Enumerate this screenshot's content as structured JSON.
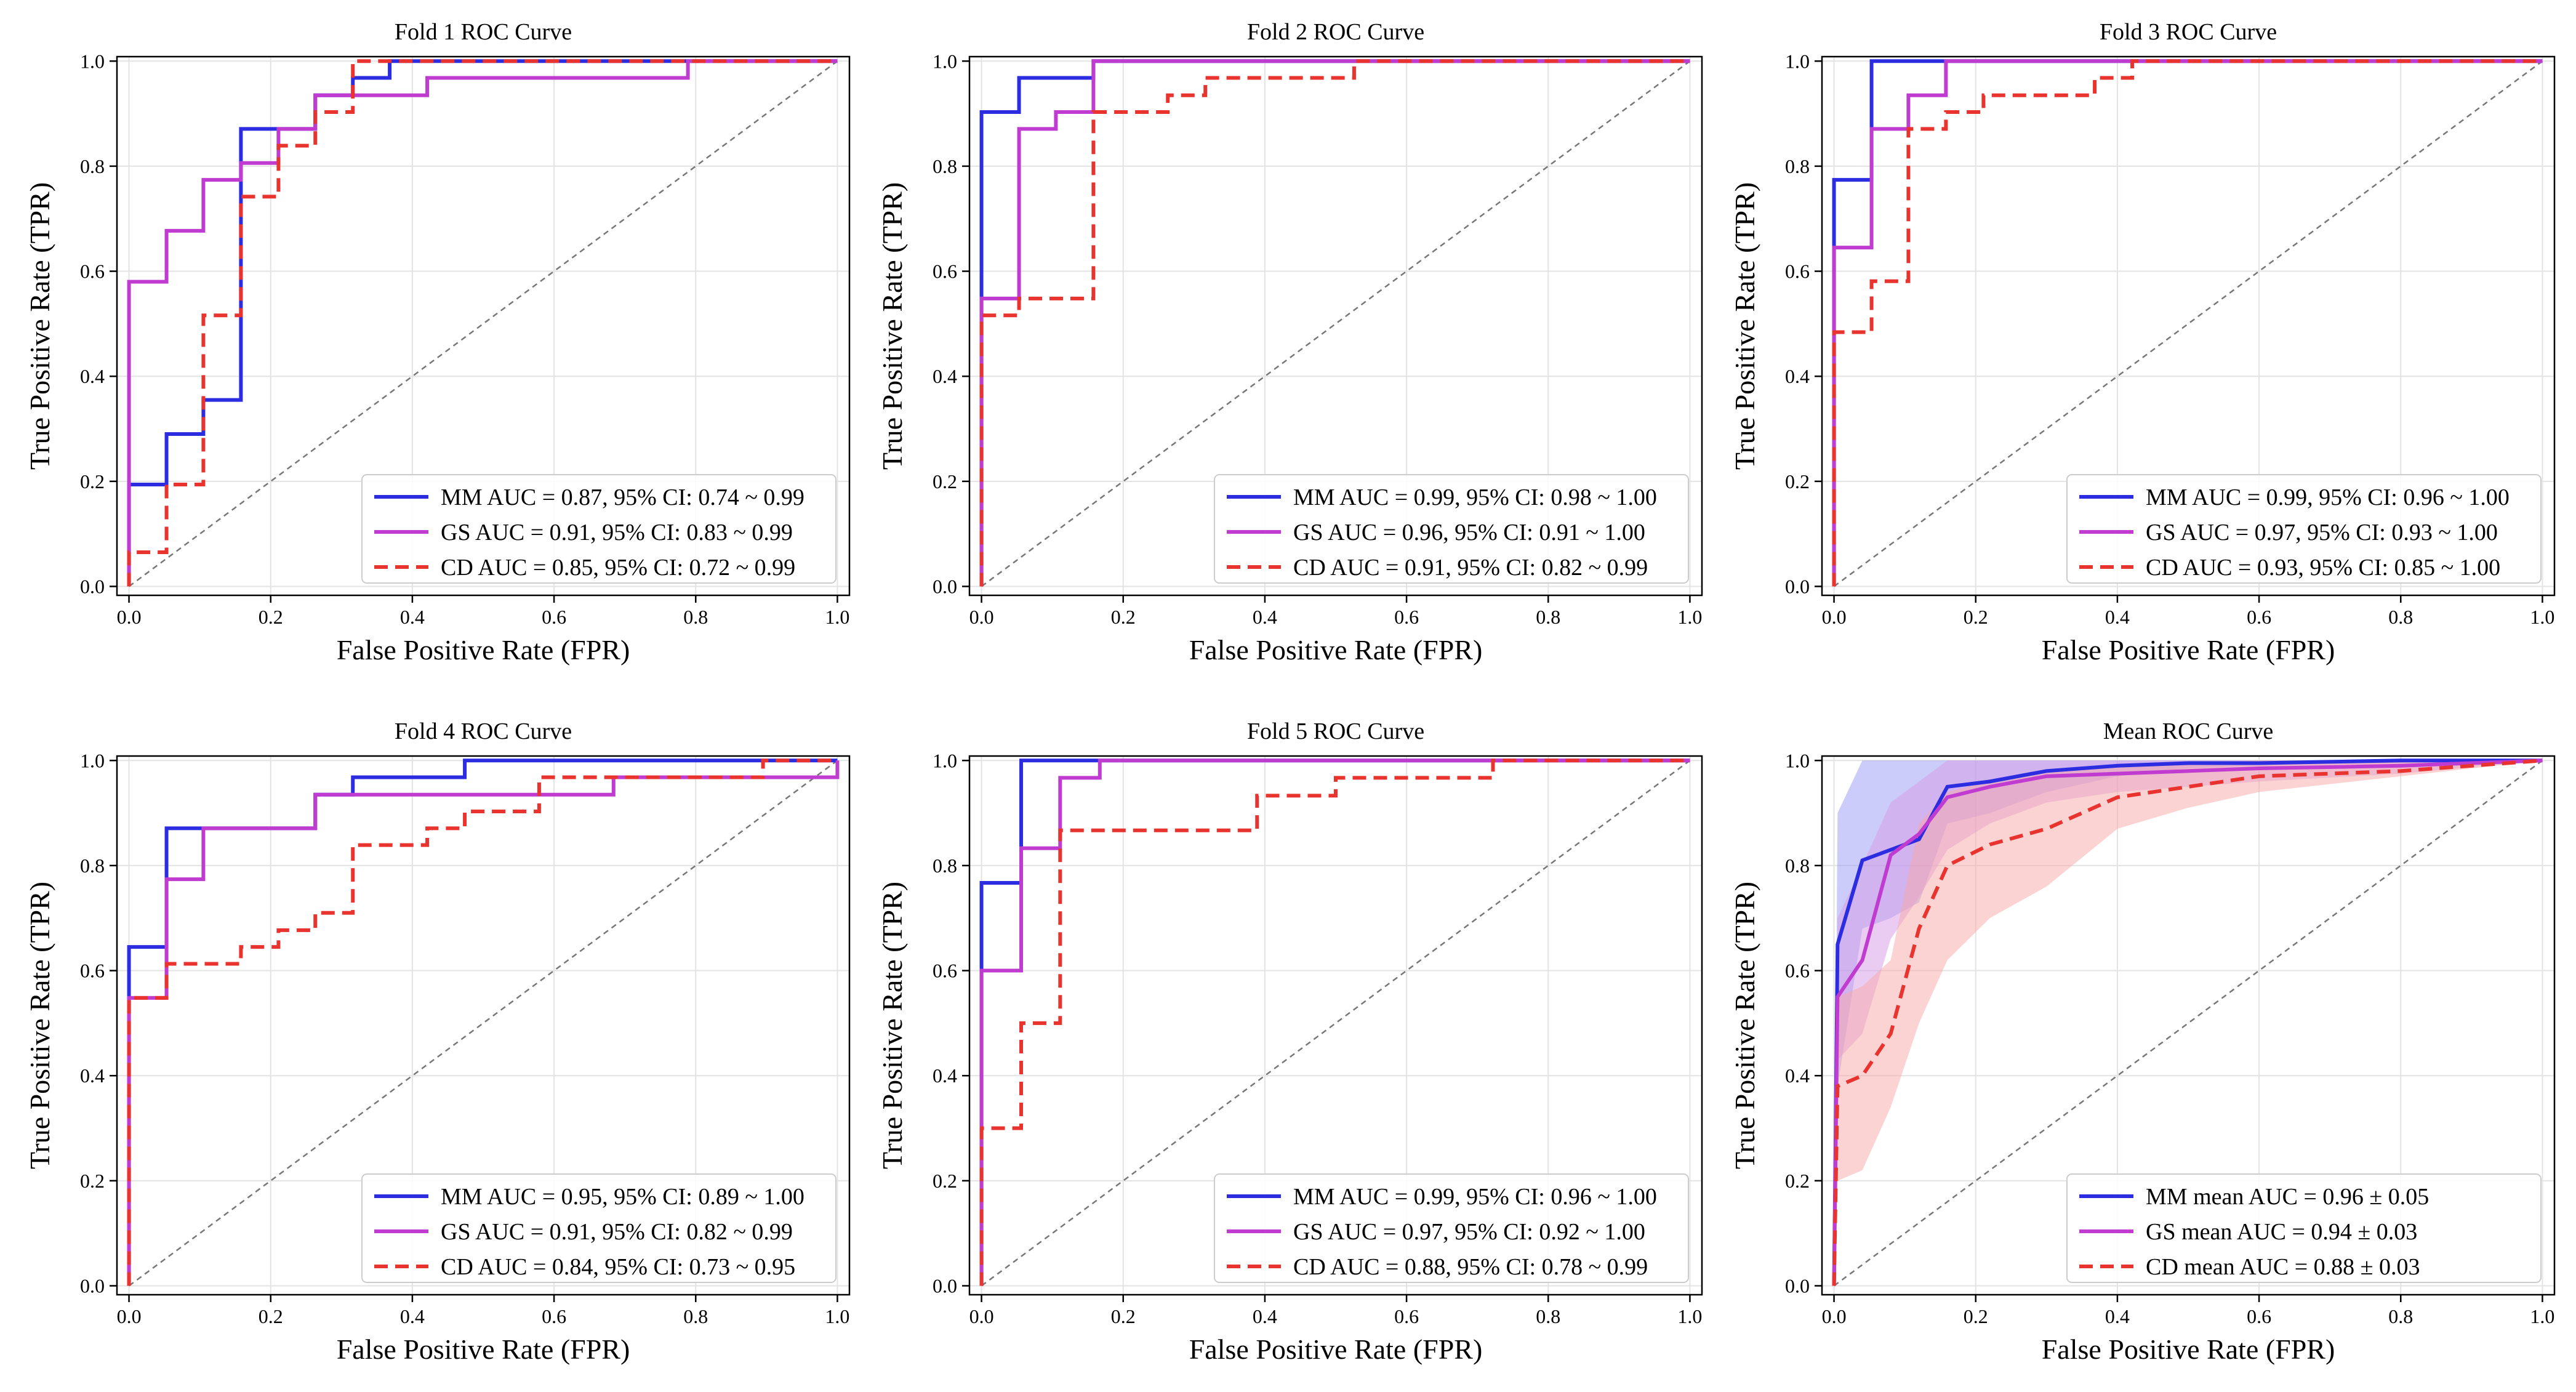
{
  "chart_data": [
    {
      "type": "line",
      "title": "Fold 1 ROC Curve",
      "xlabel": "False Positive Rate (FPR)",
      "ylabel": "True Positive Rate (TPR)",
      "xlim": [
        0,
        1
      ],
      "ylim": [
        0,
        1
      ],
      "xticks": [
        "0.0",
        "0.2",
        "0.4",
        "0.6",
        "0.8",
        "1.0"
      ],
      "yticks": [
        "0.0",
        "0.2",
        "0.4",
        "0.6",
        "0.8",
        "1.0"
      ],
      "grid": true,
      "legend_position": "lower-right",
      "series": [
        {
          "name": "MM AUC = 0.87, 95% CI: 0.74 ~ 0.99",
          "color": "#2c2ce0",
          "dash": "solid",
          "x": [
            0,
            0,
            0.053,
            0.053,
            0.105,
            0.105,
            0.158,
            0.158,
            0.263,
            0.263,
            0.316,
            0.316,
            0.368,
            0.368,
            1.0
          ],
          "y": [
            0,
            0.194,
            0.194,
            0.29,
            0.29,
            0.355,
            0.355,
            0.871,
            0.871,
            0.935,
            0.935,
            0.968,
            0.968,
            1.0,
            1.0
          ]
        },
        {
          "name": "GS AUC = 0.91, 95% CI: 0.83 ~ 0.99",
          "color": "#c03cd0",
          "dash": "solid",
          "x": [
            0,
            0,
            0.053,
            0.053,
            0.105,
            0.105,
            0.158,
            0.158,
            0.211,
            0.211,
            0.263,
            0.263,
            0.421,
            0.421,
            0.789,
            0.789,
            1.0
          ],
          "y": [
            0,
            0.58,
            0.58,
            0.677,
            0.677,
            0.774,
            0.774,
            0.806,
            0.806,
            0.871,
            0.871,
            0.935,
            0.935,
            0.968,
            0.968,
            1.0,
            1.0
          ]
        },
        {
          "name": "CD AUC = 0.85, 95% CI: 0.72 ~ 0.99",
          "color": "#e8332f",
          "dash": "dashed",
          "x": [
            0,
            0,
            0.053,
            0.053,
            0.105,
            0.105,
            0.158,
            0.158,
            0.211,
            0.211,
            0.263,
            0.263,
            0.316,
            0.316,
            1.0
          ],
          "y": [
            0,
            0.065,
            0.065,
            0.194,
            0.194,
            0.516,
            0.516,
            0.742,
            0.742,
            0.839,
            0.839,
            0.903,
            0.903,
            1.0,
            1.0
          ]
        }
      ]
    },
    {
      "type": "line",
      "title": "Fold 2 ROC Curve",
      "xlabel": "False Positive Rate (FPR)",
      "ylabel": "True Positive Rate (TPR)",
      "xlim": [
        0,
        1
      ],
      "ylim": [
        0,
        1
      ],
      "xticks": [
        "0.0",
        "0.2",
        "0.4",
        "0.6",
        "0.8",
        "1.0"
      ],
      "yticks": [
        "0.0",
        "0.2",
        "0.4",
        "0.6",
        "0.8",
        "1.0"
      ],
      "grid": true,
      "legend_position": "lower-right",
      "series": [
        {
          "name": "MM AUC = 0.99, 95% CI: 0.98 ~ 1.00",
          "color": "#2c2ce0",
          "dash": "solid",
          "x": [
            0,
            0,
            0.053,
            0.053,
            0.158,
            0.158,
            1.0
          ],
          "y": [
            0,
            0.903,
            0.903,
            0.968,
            0.968,
            1.0,
            1.0
          ]
        },
        {
          "name": "GS AUC = 0.96, 95% CI: 0.91 ~ 1.00",
          "color": "#c03cd0",
          "dash": "solid",
          "x": [
            0,
            0,
            0.053,
            0.053,
            0.105,
            0.105,
            0.158,
            0.158,
            1.0
          ],
          "y": [
            0,
            0.548,
            0.548,
            0.871,
            0.871,
            0.903,
            0.903,
            1.0,
            1.0
          ]
        },
        {
          "name": "CD AUC = 0.91, 95% CI: 0.82 ~ 0.99",
          "color": "#e8332f",
          "dash": "dashed",
          "x": [
            0,
            0,
            0.053,
            0.053,
            0.158,
            0.158,
            0.263,
            0.263,
            0.316,
            0.316,
            0.526,
            0.526,
            1.0
          ],
          "y": [
            0,
            0.516,
            0.516,
            0.548,
            0.548,
            0.903,
            0.903,
            0.935,
            0.935,
            0.968,
            0.968,
            1.0,
            1.0
          ]
        }
      ]
    },
    {
      "type": "line",
      "title": "Fold 3 ROC Curve",
      "xlabel": "False Positive Rate (FPR)",
      "ylabel": "True Positive Rate (TPR)",
      "xlim": [
        0,
        1
      ],
      "ylim": [
        0,
        1
      ],
      "xticks": [
        "0.0",
        "0.2",
        "0.4",
        "0.6",
        "0.8",
        "1.0"
      ],
      "yticks": [
        "0.0",
        "0.2",
        "0.4",
        "0.6",
        "0.8",
        "1.0"
      ],
      "grid": true,
      "legend_position": "lower-right",
      "series": [
        {
          "name": "MM AUC = 0.99, 95% CI: 0.96 ~ 1.00",
          "color": "#2c2ce0",
          "dash": "solid",
          "x": [
            0,
            0,
            0.053,
            0.053,
            1.0
          ],
          "y": [
            0,
            0.774,
            0.774,
            1.0,
            1.0
          ]
        },
        {
          "name": "GS AUC = 0.97, 95% CI: 0.93 ~ 1.00",
          "color": "#c03cd0",
          "dash": "solid",
          "x": [
            0,
            0,
            0.053,
            0.053,
            0.105,
            0.105,
            0.158,
            0.158,
            1.0
          ],
          "y": [
            0,
            0.645,
            0.645,
            0.871,
            0.871,
            0.935,
            0.935,
            1.0,
            1.0
          ]
        },
        {
          "name": "CD AUC = 0.93, 95% CI: 0.85 ~ 1.00",
          "color": "#e8332f",
          "dash": "dashed",
          "x": [
            0,
            0,
            0.053,
            0.053,
            0.105,
            0.105,
            0.158,
            0.158,
            0.211,
            0.211,
            0.368,
            0.368,
            0.421,
            0.421,
            1.0
          ],
          "y": [
            0,
            0.484,
            0.484,
            0.581,
            0.581,
            0.871,
            0.871,
            0.903,
            0.903,
            0.935,
            0.935,
            0.968,
            0.968,
            1.0,
            1.0
          ]
        }
      ]
    },
    {
      "type": "line",
      "title": "Fold 4 ROC Curve",
      "xlabel": "False Positive Rate (FPR)",
      "ylabel": "True Positive Rate (TPR)",
      "xlim": [
        0,
        1
      ],
      "ylim": [
        0,
        1
      ],
      "xticks": [
        "0.0",
        "0.2",
        "0.4",
        "0.6",
        "0.8",
        "1.0"
      ],
      "yticks": [
        "0.0",
        "0.2",
        "0.4",
        "0.6",
        "0.8",
        "1.0"
      ],
      "grid": true,
      "legend_position": "lower-right",
      "series": [
        {
          "name": "MM AUC = 0.95, 95% CI: 0.89 ~ 1.00",
          "color": "#2c2ce0",
          "dash": "solid",
          "x": [
            0,
            0,
            0.053,
            0.053,
            0.263,
            0.263,
            0.316,
            0.316,
            0.474,
            0.474,
            1.0
          ],
          "y": [
            0,
            0.645,
            0.645,
            0.871,
            0.871,
            0.935,
            0.935,
            0.968,
            0.968,
            1.0,
            1.0
          ]
        },
        {
          "name": "GS AUC = 0.91, 95% CI: 0.82 ~ 0.99",
          "color": "#c03cd0",
          "dash": "solid",
          "x": [
            0,
            0,
            0.053,
            0.053,
            0.105,
            0.105,
            0.263,
            0.263,
            0.684,
            0.684,
            1.0,
            1.0
          ],
          "y": [
            0,
            0.548,
            0.548,
            0.774,
            0.774,
            0.871,
            0.871,
            0.935,
            0.935,
            0.968,
            0.968,
            1.0
          ]
        },
        {
          "name": "CD AUC = 0.84, 95% CI: 0.73 ~ 0.95",
          "color": "#e8332f",
          "dash": "dashed",
          "x": [
            0,
            0,
            0.053,
            0.053,
            0.158,
            0.158,
            0.211,
            0.211,
            0.263,
            0.263,
            0.316,
            0.316,
            0.421,
            0.421,
            0.474,
            0.474,
            0.579,
            0.579,
            0.684,
            0.684,
            0.895,
            0.895,
            1.0
          ],
          "y": [
            0,
            0.548,
            0.548,
            0.613,
            0.613,
            0.645,
            0.645,
            0.677,
            0.677,
            0.71,
            0.71,
            0.839,
            0.839,
            0.871,
            0.871,
            0.903,
            0.903,
            0.968,
            0.968,
            0.968,
            0.968,
            1.0,
            1.0
          ]
        }
      ]
    },
    {
      "type": "line",
      "title": "Fold 5 ROC Curve",
      "xlabel": "False Positive Rate (FPR)",
      "ylabel": "True Positive Rate (TPR)",
      "xlim": [
        0,
        1
      ],
      "ylim": [
        0,
        1
      ],
      "xticks": [
        "0.0",
        "0.2",
        "0.4",
        "0.6",
        "0.8",
        "1.0"
      ],
      "yticks": [
        "0.0",
        "0.2",
        "0.4",
        "0.6",
        "0.8",
        "1.0"
      ],
      "grid": true,
      "legend_position": "lower-right",
      "series": [
        {
          "name": "MM AUC = 0.99, 95% CI: 0.96 ~ 1.00",
          "color": "#2c2ce0",
          "dash": "solid",
          "x": [
            0,
            0,
            0.056,
            0.056,
            1.0
          ],
          "y": [
            0,
            0.767,
            0.767,
            1.0,
            1.0
          ]
        },
        {
          "name": "GS AUC = 0.97, 95% CI: 0.92 ~ 1.00",
          "color": "#c03cd0",
          "dash": "solid",
          "x": [
            0,
            0,
            0.056,
            0.056,
            0.111,
            0.111,
            0.167,
            0.167,
            1.0
          ],
          "y": [
            0,
            0.6,
            0.6,
            0.833,
            0.833,
            0.967,
            0.967,
            1.0,
            1.0
          ]
        },
        {
          "name": "CD AUC = 0.88, 95% CI: 0.78 ~ 0.99",
          "color": "#e8332f",
          "dash": "dashed",
          "x": [
            0,
            0,
            0.056,
            0.056,
            0.111,
            0.111,
            0.389,
            0.389,
            0.5,
            0.5,
            0.722,
            0.722,
            1.0
          ],
          "y": [
            0,
            0.3,
            0.3,
            0.5,
            0.5,
            0.867,
            0.867,
            0.933,
            0.933,
            0.967,
            0.967,
            1.0,
            1.0
          ]
        }
      ]
    },
    {
      "type": "area",
      "title": "Mean ROC Curve",
      "xlabel": "False Positive Rate (FPR)",
      "ylabel": "True Positive Rate (TPR)",
      "xlim": [
        0,
        1
      ],
      "ylim": [
        0,
        1
      ],
      "xticks": [
        "0.0",
        "0.2",
        "0.4",
        "0.6",
        "0.8",
        "1.0"
      ],
      "yticks": [
        "0.0",
        "0.2",
        "0.4",
        "0.6",
        "0.8",
        "1.0"
      ],
      "grid": true,
      "legend_position": "lower-right",
      "series": [
        {
          "name": "MM mean AUC = 0.96 ± 0.05",
          "color": "#2c2ce0",
          "dash": "solid",
          "band_color": "#9a9af5",
          "x": [
            0,
            0.005,
            0.04,
            0.08,
            0.12,
            0.16,
            0.22,
            0.3,
            0.4,
            0.5,
            0.6,
            0.8,
            1.0
          ],
          "y": [
            0,
            0.65,
            0.81,
            0.83,
            0.85,
            0.95,
            0.96,
            0.98,
            0.99,
            0.995,
            0.995,
            1.0,
            1.0
          ],
          "lower": [
            0,
            0.38,
            0.68,
            0.7,
            0.73,
            0.88,
            0.9,
            0.94,
            0.97,
            0.985,
            0.99,
            0.995,
            1.0
          ],
          "upper": [
            0,
            0.9,
            1.0,
            1.0,
            1.0,
            1.0,
            1.0,
            1.0,
            1.0,
            1.0,
            1.0,
            1.0,
            1.0
          ]
        },
        {
          "name": "GS mean AUC = 0.94 ± 0.03",
          "color": "#c03cd0",
          "dash": "solid",
          "band_color": "#d59ae6",
          "x": [
            0,
            0.005,
            0.04,
            0.08,
            0.12,
            0.16,
            0.22,
            0.3,
            0.4,
            0.5,
            0.6,
            0.8,
            1.0
          ],
          "y": [
            0,
            0.55,
            0.62,
            0.82,
            0.86,
            0.93,
            0.95,
            0.97,
            0.975,
            0.98,
            0.985,
            0.99,
            1.0
          ],
          "lower": [
            0,
            0.43,
            0.48,
            0.66,
            0.74,
            0.83,
            0.88,
            0.92,
            0.94,
            0.95,
            0.96,
            0.975,
            1.0
          ],
          "upper": [
            0,
            0.7,
            0.8,
            0.92,
            0.96,
            1.0,
            1.0,
            1.0,
            1.0,
            1.0,
            1.0,
            1.0,
            1.0
          ]
        },
        {
          "name": "CD mean AUC = 0.88 ± 0.03",
          "color": "#e8332f",
          "dash": "dashed",
          "band_color": "#f7a8a8",
          "x": [
            0,
            0.005,
            0.04,
            0.08,
            0.12,
            0.16,
            0.22,
            0.3,
            0.4,
            0.5,
            0.6,
            0.8,
            1.0
          ],
          "y": [
            0,
            0.38,
            0.4,
            0.48,
            0.68,
            0.8,
            0.84,
            0.87,
            0.93,
            0.95,
            0.97,
            0.98,
            1.0
          ],
          "lower": [
            0,
            0.2,
            0.22,
            0.34,
            0.5,
            0.62,
            0.7,
            0.76,
            0.87,
            0.91,
            0.94,
            0.97,
            1.0
          ],
          "upper": [
            0,
            0.55,
            0.57,
            0.62,
            0.88,
            0.94,
            0.96,
            0.98,
            0.99,
            0.995,
            1.0,
            1.0,
            1.0
          ]
        }
      ]
    }
  ]
}
